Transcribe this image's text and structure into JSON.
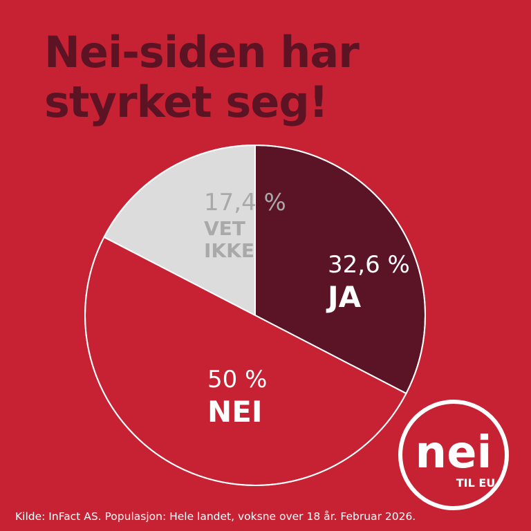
{
  "headline": {
    "line1": "Nei-siden har",
    "line2": "styrket seg!"
  },
  "chart_data": {
    "type": "pie",
    "title": "Nei-siden har styrket seg!",
    "start_angle_deg": 0,
    "direction": "clockwise",
    "slices": [
      {
        "label": "JA",
        "value": 32.6,
        "value_text": "32,6 %",
        "color": "#5a1426",
        "text_color": "#ffffff"
      },
      {
        "label": "NEI",
        "value": 50.0,
        "value_text": "50 %",
        "color": "#c62233",
        "text_color": "#ffffff"
      },
      {
        "label": "VET IKKE",
        "label_lines": [
          "VET",
          "IKKE"
        ],
        "value": 17.4,
        "value_text": "17,4 %",
        "color": "#dcdcdc",
        "text_color": "#a9a9a9"
      }
    ],
    "outline_color": "#ffffff"
  },
  "source": {
    "text": "Kilde: InFact AS. Populasjon: Hele landet, voksne over 18 år. Februar 2026."
  },
  "logo": {
    "word": "nei",
    "tagline": "TIL EU",
    "color": "#ffffff"
  },
  "colors": {
    "background": "#c62233",
    "headline": "#5c1425"
  }
}
